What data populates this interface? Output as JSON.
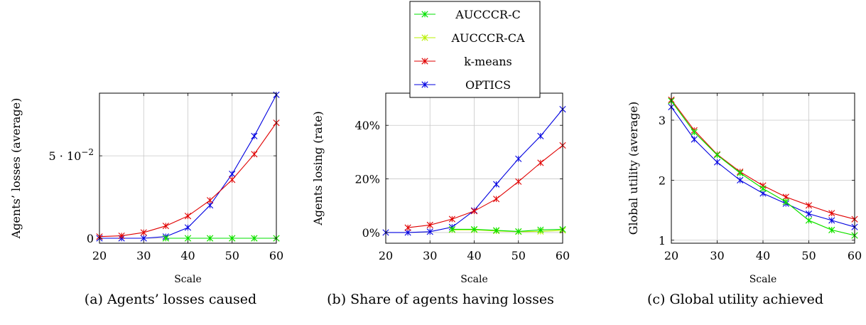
{
  "legend": {
    "entries": [
      {
        "label": "AUCCCR-C",
        "color": "#00e000"
      },
      {
        "label": "AUCCCR-CA",
        "color": "#b8f000"
      },
      {
        "label": "k-means",
        "color": "#e00000"
      },
      {
        "label": "OPTICS",
        "color": "#0000e0"
      }
    ]
  },
  "captions": {
    "a": "(a) Agents’ losses caused",
    "b": "(b) Share of agents having losses",
    "c": "(c) Global utility achieved"
  },
  "chart_data": [
    {
      "id": "a",
      "type": "line",
      "xlabel": "Scale",
      "ylabel": "Agents’ losses (average)",
      "xlim": [
        20,
        60
      ],
      "ylim": [
        -0.003,
        0.088
      ],
      "xticks": [
        20,
        30,
        40,
        50,
        60
      ],
      "xtick_labels": [
        "20",
        "30",
        "40",
        "50",
        "60"
      ],
      "yticks": [
        0,
        0.05
      ],
      "ytick_labels": [
        "0",
        "5 · 10−2"
      ],
      "grid": true,
      "series": [
        {
          "name": "AUCCCR-C",
          "color": "#00e000",
          "x": [
            35,
            40,
            45,
            50,
            55,
            60
          ],
          "y": [
            0,
            0,
            0,
            0,
            0,
            0
          ]
        },
        {
          "name": "AUCCCR-CA",
          "color": "#b8f000",
          "x": [
            35,
            40,
            45,
            50,
            55,
            60
          ],
          "y": [
            0,
            0,
            0,
            0,
            0,
            0
          ]
        },
        {
          "name": "k-means",
          "color": "#e00000",
          "x": [
            20,
            25,
            30,
            35,
            40,
            45,
            50,
            55,
            60
          ],
          "y": [
            0.001,
            0.0015,
            0.0035,
            0.0075,
            0.0135,
            0.023,
            0.0355,
            0.051,
            0.07
          ]
        },
        {
          "name": "OPTICS",
          "color": "#0000e0",
          "x": [
            20,
            25,
            30,
            35,
            40,
            45,
            50,
            55,
            60
          ],
          "y": [
            0,
            0,
            0,
            0.001,
            0.0065,
            0.02,
            0.039,
            0.062,
            0.087
          ]
        }
      ]
    },
    {
      "id": "b",
      "type": "line",
      "xlabel": "Scale",
      "ylabel": "Agents losing (rate)",
      "xlim": [
        20,
        60
      ],
      "ylim": [
        -4,
        52
      ],
      "xticks": [
        20,
        30,
        40,
        50,
        60
      ],
      "xtick_labels": [
        "20",
        "30",
        "40",
        "50",
        "60"
      ],
      "yticks": [
        0,
        20,
        40
      ],
      "ytick_labels": [
        "0%",
        "20%",
        "40%"
      ],
      "grid": true,
      "series": [
        {
          "name": "AUCCCR-C",
          "color": "#00e000",
          "x": [
            35,
            40,
            45,
            50,
            55,
            60
          ],
          "y": [
            1.2,
            1.2,
            0.8,
            0.4,
            1.0,
            1.2
          ]
        },
        {
          "name": "AUCCCR-CA",
          "color": "#b8f000",
          "x": [
            35,
            40,
            45,
            50,
            55,
            60
          ],
          "y": [
            1.0,
            1.0,
            0.6,
            0.3,
            0.4,
            0.8
          ]
        },
        {
          "name": "k-means",
          "color": "#e00000",
          "x": [
            25,
            30,
            35,
            40,
            45,
            50,
            55,
            60
          ],
          "y": [
            1.8,
            2.8,
            5.0,
            8.0,
            12.5,
            19.0,
            26.0,
            32.5
          ]
        },
        {
          "name": "OPTICS",
          "color": "#0000e0",
          "x": [
            20,
            25,
            30,
            35,
            40,
            45,
            50,
            55,
            60
          ],
          "y": [
            0,
            0,
            0.3,
            2.0,
            8.2,
            18.0,
            27.5,
            36.0,
            46.0
          ]
        }
      ]
    },
    {
      "id": "c",
      "type": "line",
      "xlabel": "Scale",
      "ylabel": "Global utility (average)",
      "xlim": [
        20,
        60
      ],
      "ylim": [
        0.95,
        3.45
      ],
      "xticks": [
        20,
        30,
        40,
        50,
        60
      ],
      "xtick_labels": [
        "20",
        "30",
        "40",
        "50",
        "60"
      ],
      "yticks": [
        1,
        2,
        3
      ],
      "ytick_labels": [
        "1",
        "2",
        "3"
      ],
      "grid": true,
      "series": [
        {
          "name": "AUCCCR-C",
          "color": "#00e000",
          "x": [
            20,
            25,
            30,
            35,
            40,
            45,
            50,
            55,
            60
          ],
          "y": [
            3.32,
            2.8,
            2.42,
            2.12,
            1.86,
            1.64,
            1.33,
            1.17,
            1.08
          ]
        },
        {
          "name": "AUCCCR-CA",
          "color": "#b8f000",
          "x": [
            20,
            25,
            30,
            35,
            40,
            45,
            50,
            55,
            60
          ],
          "y": [
            3.32,
            2.8,
            2.42,
            2.12,
            1.86,
            1.64,
            1.33,
            1.17,
            1.08
          ]
        },
        {
          "name": "k-means",
          "color": "#e00000",
          "x": [
            20,
            25,
            30,
            35,
            40,
            45,
            50,
            55,
            60
          ],
          "y": [
            3.34,
            2.83,
            2.43,
            2.14,
            1.91,
            1.72,
            1.58,
            1.45,
            1.35
          ]
        },
        {
          "name": "OPTICS",
          "color": "#0000e0",
          "x": [
            20,
            25,
            30,
            35,
            40,
            45,
            50,
            55,
            60
          ],
          "y": [
            3.22,
            2.68,
            2.3,
            2.0,
            1.78,
            1.61,
            1.44,
            1.33,
            1.22
          ]
        }
      ]
    }
  ]
}
